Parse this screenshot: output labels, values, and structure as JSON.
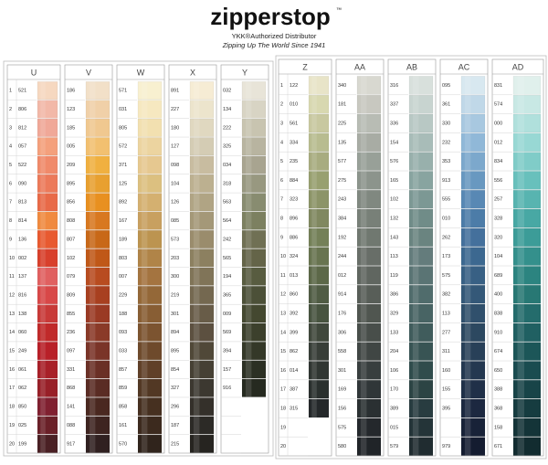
{
  "header": {
    "logo": "zipperstop",
    "trademark": "™",
    "subtitle": "YKK®Authorized Distributor",
    "tagline": "Zipping Up The World Since 1941"
  },
  "groups": [
    {
      "row_numbers": [
        1,
        2,
        3,
        4,
        5,
        6,
        7,
        8,
        9,
        10,
        11,
        12,
        13,
        14,
        15,
        16,
        17,
        18,
        19,
        20
      ],
      "columns": [
        {
          "label": "U",
          "codes": [
            "521",
            "806",
            "812",
            "057",
            "522",
            "090",
            "813",
            "814",
            "136",
            "002",
            "137",
            "816",
            "138",
            "060",
            "249",
            "061",
            "062",
            "850",
            "025",
            "199"
          ],
          "colors": [
            "#f6d8c0",
            "#f2b8a8",
            "#f0a898",
            "#f4a07c",
            "#f08a6a",
            "#ec7a5a",
            "#e86a48",
            "#f08a40",
            "#e85a30",
            "#d8402c",
            "#e06060",
            "#d84848",
            "#c83a38",
            "#c02a2a",
            "#b82028",
            "#a82028",
            "#982028",
            "#802030",
            "#6a2028",
            "#4a2024"
          ]
        },
        {
          "label": "V",
          "codes": [
            "186",
            "123",
            "185",
            "005",
            "209",
            "895",
            "856",
            "808",
            "807",
            "102",
            "079",
            "809",
            "855",
            "236",
            "097",
            "331",
            "868",
            "141",
            "088",
            "917"
          ],
          "colors": [
            "#f2e0c8",
            "#f0d0a8",
            "#f0c890",
            "#f2c070",
            "#f0b040",
            "#e8a030",
            "#e89020",
            "#d87820",
            "#c86818",
            "#c05818",
            "#b84c20",
            "#a84020",
            "#9a3a24",
            "#8a3a28",
            "#7a3428",
            "#6a3026",
            "#5a2c24",
            "#4a2820",
            "#3e2420",
            "#302020"
          ]
        },
        {
          "label": "W",
          "codes": [
            "571",
            "031",
            "805",
            "572",
            "371",
            "125",
            "892",
            "167",
            "189",
            "803",
            "007",
            "229",
            "188",
            "093",
            "033",
            "857",
            "859",
            "858",
            "161",
            "570"
          ],
          "colors": [
            "#f8f0d0",
            "#f6e8c0",
            "#f2e0b0",
            "#ecd4a0",
            "#e6c890",
            "#dcc080",
            "#d4b070",
            "#c8a060",
            "#bc9450",
            "#b08448",
            "#a47440",
            "#946838",
            "#885e34",
            "#7c5430",
            "#6e4a2c",
            "#604028",
            "#523824",
            "#463020",
            "#3c2a1e",
            "#30241c"
          ]
        },
        {
          "label": "X",
          "codes": [
            "891",
            "227",
            "180",
            "127",
            "098",
            "104",
            "126",
            "085",
            "573",
            "203",
            "300",
            "219",
            "301",
            "894",
            "895",
            "854",
            "327",
            "296",
            "187",
            "215"
          ],
          "colors": [
            "#f6ecd4",
            "#ece4cc",
            "#e0d8c0",
            "#d4ccb4",
            "#c8bca0",
            "#bcb090",
            "#b0a484",
            "#a49878",
            "#9a8c6c",
            "#8c8060",
            "#807458",
            "#746850",
            "#685c48",
            "#5c5040",
            "#504838",
            "#464034",
            "#3c3830",
            "#34302a",
            "#2c2a26",
            "#262420"
          ]
        },
        {
          "label": "Y",
          "codes": [
            "032",
            "134",
            "222",
            "325",
            "034",
            "318",
            "563",
            "564",
            "242",
            "565",
            "194",
            "365",
            "009",
            "569",
            "394",
            "157",
            "916"
          ],
          "colors": [
            "#e8e4d8",
            "#d8d4c4",
            "#c8c4b0",
            "#b8b4a0",
            "#a8a490",
            "#989880",
            "#888c70",
            "#7c8060",
            "#707054",
            "#646448",
            "#585c40",
            "#4c5038",
            "#444830",
            "#3c402c",
            "#343828",
            "#2c3024",
            "#262a20"
          ]
        }
      ]
    },
    {
      "row_numbers": [
        1,
        2,
        3,
        4,
        5,
        6,
        7,
        8,
        9,
        10,
        11,
        12,
        13,
        14,
        15,
        16,
        17,
        18,
        19,
        20
      ],
      "columns": [
        {
          "label": "Z",
          "codes": [
            "122",
            "010",
            "561",
            "334",
            "235",
            "884",
            "323",
            "896",
            "886",
            "324",
            "013",
            "860",
            "392",
            "399",
            "862",
            "014",
            "387",
            "315"
          ],
          "colors": [
            "#e8e4c8",
            "#d8d8b0",
            "#c8c8a0",
            "#b8bc90",
            "#a8ac80",
            "#98a070",
            "#8c9468",
            "#808860",
            "#748058",
            "#687450",
            "#5c6848",
            "#505c44",
            "#485440",
            "#40483c",
            "#383e38",
            "#303632",
            "#2a302e",
            "#24282a"
          ]
        },
        {
          "label": "AA",
          "codes": [
            "340",
            "181",
            "225",
            "135",
            "577",
            "275",
            "243",
            "384",
            "192",
            "244",
            "012",
            "914",
            "176",
            "306",
            "558",
            "301",
            "169",
            "156",
            "575",
            "580"
          ],
          "colors": [
            "#d8d8d0",
            "#c8c8c0",
            "#b8bcb4",
            "#a8aca4",
            "#98a098",
            "#8c948c",
            "#808880",
            "#788078",
            "#707870",
            "#686e68",
            "#606660",
            "#585e58",
            "#505650",
            "#484e4a",
            "#404644",
            "#383e3e",
            "#303638",
            "#2a3032",
            "#24282c",
            "#202428"
          ]
        },
        {
          "label": "AB",
          "codes": [
            "316",
            "337",
            "336",
            "154",
            "576",
            "165",
            "102",
            "132",
            "143",
            "113",
            "119",
            "386",
            "329",
            "133",
            "204",
            "106",
            "170",
            "389",
            "015",
            "579"
          ],
          "colors": [
            "#d8e0dc",
            "#c8d4d0",
            "#b8c8c4",
            "#a8bcb8",
            "#98b0ac",
            "#88a4a0",
            "#7c9894",
            "#708c88",
            "#6a8480",
            "#647c7c",
            "#5a7474",
            "#506c6c",
            "#486464",
            "#405c5c",
            "#385454",
            "#304c4c",
            "#2c4444",
            "#283c40",
            "#243438",
            "#202c30"
          ]
        },
        {
          "label": "AC",
          "codes": [
            "095",
            "361",
            "330",
            "232",
            "353",
            "913",
            "555",
            "010",
            "262",
            "173",
            "575",
            "382",
            "113",
            "277",
            "311",
            "160",
            "155",
            "395",
            null,
            "979"
          ],
          "colors": [
            "#d8e8f0",
            "#c0d8e8",
            "#a8c8e0",
            "#90b8d8",
            "#7ca8cc",
            "#6898c0",
            "#5888b4",
            "#4c7ca8",
            "#44709c",
            "#3c6890",
            "#386084",
            "#345878",
            "#30506c",
            "#2c4860",
            "#284058",
            "#243850",
            "#203048",
            "#1c2840",
            "#182238",
            "#141c30"
          ]
        },
        {
          "label": "AD",
          "codes": [
            "831",
            "574",
            "000",
            "012",
            "834",
            "556",
            "257",
            "328",
            "320",
            "104",
            "689",
            "400",
            "838",
            "910",
            "674",
            "650",
            "388",
            "368",
            "158",
            "671"
          ],
          "colors": [
            "#e0f0ec",
            "#c8e8e4",
            "#b0e0dc",
            "#98d8d4",
            "#80ccc8",
            "#68c0bc",
            "#58b4b0",
            "#48a8a4",
            "#3c9c98",
            "#34908c",
            "#2c8480",
            "#287874",
            "#246c6c",
            "#206062",
            "#1c5658",
            "#1a4c50",
            "#184448",
            "#163c40",
            "#143438",
            "#122c30"
          ]
        }
      ]
    }
  ]
}
